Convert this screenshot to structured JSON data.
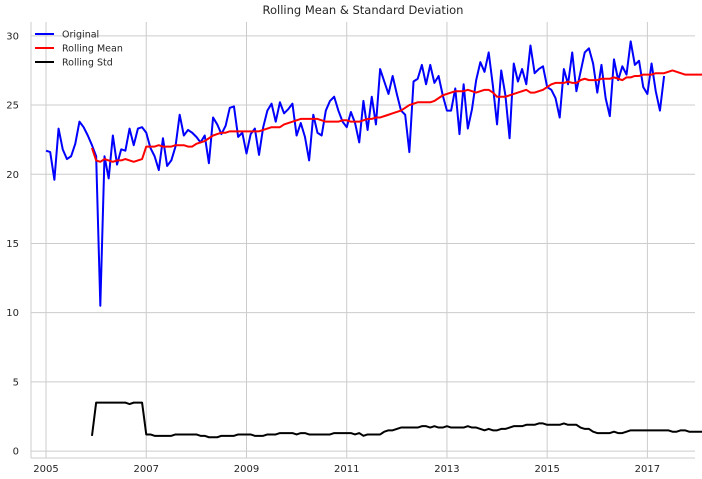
{
  "chart_data": {
    "type": "line",
    "title": "Rolling Mean & Standard Deviation",
    "xlabel": "",
    "ylabel": "",
    "xlim": [
      2004.7,
      2017.95
    ],
    "ylim": [
      -0.5,
      31
    ],
    "xticks": [
      2005,
      2007,
      2009,
      2011,
      2013,
      2015,
      2017
    ],
    "xtick_labels": [
      "2005",
      "2007",
      "2009",
      "2011",
      "2013",
      "2015",
      "2017"
    ],
    "yticks": [
      0,
      5,
      10,
      15,
      20,
      25,
      30
    ],
    "ytick_labels": [
      "0",
      "5",
      "10",
      "15",
      "20",
      "25",
      "30"
    ],
    "grid": true,
    "legend_position": "top-left",
    "x_start": "2005-01",
    "x_step": "1 month",
    "series": [
      {
        "name": "Original",
        "color": "#0000ff",
        "start_month": 1,
        "values": [
          21.7,
          21.6,
          19.6,
          23.3,
          21.8,
          21.1,
          21.3,
          22.2,
          23.8,
          23.4,
          22.8,
          22.1,
          21.3,
          10.5,
          21.3,
          19.7,
          22.8,
          20.7,
          21.8,
          21.7,
          23.3,
          22.1,
          23.3,
          23.4,
          23.0,
          21.9,
          21.3,
          20.3,
          22.6,
          20.6,
          21.0,
          22.0,
          24.3,
          22.8,
          23.2,
          23.0,
          22.7,
          22.3,
          22.8,
          20.8,
          24.1,
          23.6,
          22.9,
          23.5,
          24.8,
          24.9,
          22.7,
          23.0,
          21.5,
          22.9,
          23.3,
          21.4,
          23.4,
          24.6,
          25.1,
          23.8,
          25.2,
          24.4,
          24.7,
          25.1,
          22.8,
          23.7,
          22.7,
          21.0,
          24.3,
          23.0,
          22.8,
          24.6,
          25.3,
          25.6,
          24.6,
          23.8,
          23.4,
          24.5,
          23.7,
          22.3,
          25.3,
          23.2,
          25.6,
          23.6,
          27.6,
          26.7,
          25.8,
          27.1,
          25.8,
          24.6,
          24.3,
          21.6,
          26.7,
          26.9,
          27.9,
          26.5,
          27.9,
          26.6,
          27.1,
          25.7,
          24.6,
          24.6,
          26.2,
          22.9,
          26.5,
          23.3,
          24.7,
          26.8,
          28.1,
          27.4,
          28.8,
          26.4,
          23.6,
          27.5,
          25.7,
          22.6,
          28.0,
          26.7,
          27.6,
          26.5,
          29.3,
          27.3,
          27.6,
          27.8,
          26.3,
          26.1,
          25.5,
          24.1,
          27.6,
          26.5,
          28.8,
          26.0,
          27.4,
          28.8,
          29.1,
          28.0,
          25.9,
          27.9,
          25.5,
          24.2,
          28.3,
          26.8,
          27.8,
          27.2,
          29.6,
          27.9,
          28.2,
          26.3,
          25.8,
          28.0,
          26.0,
          24.6,
          27.1
        ]
      },
      {
        "name": "Rolling Mean",
        "color": "#ff0000",
        "start_month": 12,
        "values": [
          21.9,
          21.0,
          20.9,
          21.1,
          21.0,
          20.9,
          21.0,
          21.0,
          21.1,
          21.0,
          20.9,
          21.0,
          21.1,
          22.0,
          22.0,
          22.0,
          22.1,
          22.0,
          22.0,
          22.0,
          22.1,
          22.1,
          22.1,
          22.0,
          22.0,
          22.2,
          22.3,
          22.4,
          22.6,
          22.8,
          22.9,
          23.0,
          23.0,
          23.1,
          23.1,
          23.1,
          23.1,
          23.1,
          23.1,
          23.1,
          23.1,
          23.2,
          23.3,
          23.4,
          23.4,
          23.4,
          23.6,
          23.7,
          23.8,
          23.9,
          24.0,
          24.0,
          24.0,
          24.0,
          24.0,
          23.9,
          23.8,
          23.8,
          23.8,
          23.8,
          23.9,
          23.9,
          23.8,
          23.8,
          23.8,
          23.9,
          24.0,
          24.0,
          24.1,
          24.1,
          24.2,
          24.3,
          24.4,
          24.5,
          24.6,
          24.8,
          25.0,
          25.1,
          25.2,
          25.2,
          25.2,
          25.2,
          25.3,
          25.5,
          25.7,
          25.8,
          25.9,
          26.0,
          26.0,
          26.0,
          26.1,
          26.0,
          25.9,
          26.0,
          26.1,
          26.1,
          25.9,
          25.6,
          25.6,
          25.6,
          25.7,
          25.8,
          25.9,
          26.0,
          26.1,
          25.9,
          25.9,
          26.0,
          26.1,
          26.3,
          26.5,
          26.6,
          26.6,
          26.6,
          26.7,
          26.6,
          26.6,
          26.8,
          26.9,
          26.8,
          26.8,
          26.8,
          26.9,
          26.9,
          26.9,
          27.0,
          26.9,
          26.8,
          27.0,
          27.0,
          27.1,
          27.1,
          27.2,
          27.2,
          27.2,
          27.3,
          27.3,
          27.3,
          27.4,
          27.5,
          27.4,
          27.3,
          27.2,
          27.2,
          27.2,
          27.2,
          27.2,
          27.3,
          27.2
        ]
      },
      {
        "name": "Rolling Std",
        "color": "#000000",
        "start_month": 12,
        "values": [
          1.1,
          3.5,
          3.5,
          3.5,
          3.5,
          3.5,
          3.5,
          3.5,
          3.5,
          3.4,
          3.5,
          3.5,
          3.5,
          1.2,
          1.2,
          1.1,
          1.1,
          1.1,
          1.1,
          1.1,
          1.2,
          1.2,
          1.2,
          1.2,
          1.2,
          1.2,
          1.1,
          1.1,
          1.0,
          1.0,
          1.0,
          1.1,
          1.1,
          1.1,
          1.1,
          1.2,
          1.2,
          1.2,
          1.2,
          1.1,
          1.1,
          1.1,
          1.2,
          1.2,
          1.2,
          1.3,
          1.3,
          1.3,
          1.3,
          1.2,
          1.3,
          1.3,
          1.2,
          1.2,
          1.2,
          1.2,
          1.2,
          1.2,
          1.3,
          1.3,
          1.3,
          1.3,
          1.3,
          1.2,
          1.3,
          1.1,
          1.2,
          1.2,
          1.2,
          1.2,
          1.4,
          1.5,
          1.5,
          1.6,
          1.7,
          1.7,
          1.7,
          1.7,
          1.7,
          1.8,
          1.8,
          1.7,
          1.8,
          1.7,
          1.7,
          1.8,
          1.7,
          1.7,
          1.7,
          1.7,
          1.8,
          1.7,
          1.7,
          1.6,
          1.5,
          1.6,
          1.5,
          1.5,
          1.6,
          1.6,
          1.7,
          1.8,
          1.8,
          1.8,
          1.9,
          1.9,
          1.9,
          2.0,
          2.0,
          1.9,
          1.9,
          1.9,
          1.9,
          2.0,
          1.9,
          1.9,
          1.9,
          1.7,
          1.6,
          1.6,
          1.4,
          1.3,
          1.3,
          1.3,
          1.3,
          1.4,
          1.3,
          1.3,
          1.4,
          1.5,
          1.5,
          1.5,
          1.5,
          1.5,
          1.5,
          1.5,
          1.5,
          1.5,
          1.5,
          1.4,
          1.4,
          1.5,
          1.5,
          1.4,
          1.4,
          1.4,
          1.4,
          1.4,
          1.3
        ]
      }
    ]
  }
}
